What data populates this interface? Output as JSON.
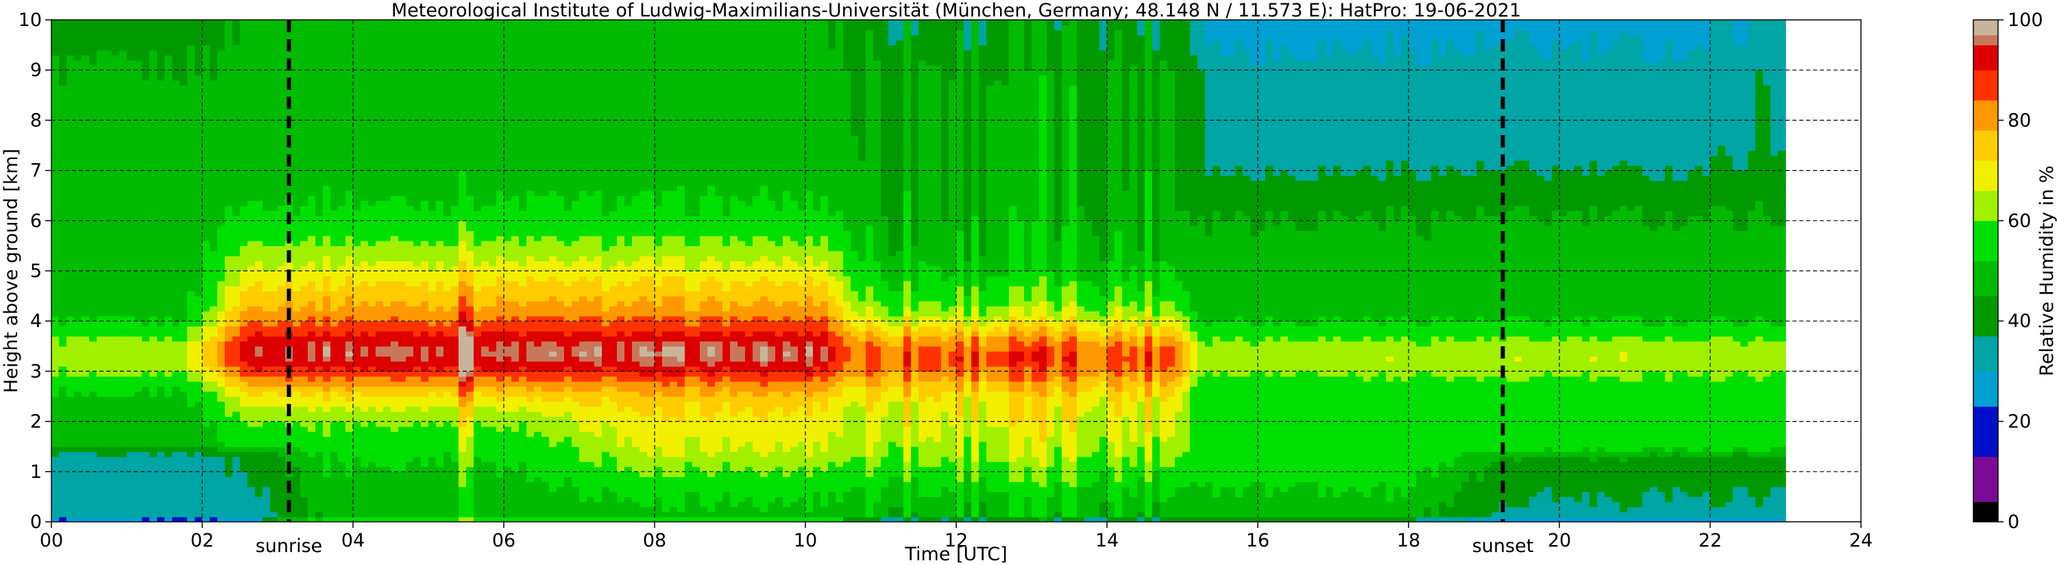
{
  "chart_data": {
    "type": "heatmap",
    "title": "Meteorological Institute of Ludwig-Maximilians-Universität (München, Germany; 48.148 N / 11.573 E):    HatPro: 19-06-2021",
    "xlabel": "Time [UTC]",
    "ylabel": "Height above ground [km]",
    "xlim": [
      0,
      24
    ],
    "ylim": [
      0,
      10
    ],
    "x_ticks": [
      "00",
      "02",
      "04",
      "06",
      "08",
      "10",
      "12",
      "14",
      "16",
      "18",
      "20",
      "22",
      "24"
    ],
    "y_ticks": [
      "0",
      "1",
      "2",
      "3",
      "4",
      "5",
      "6",
      "7",
      "8",
      "9",
      "10"
    ],
    "grid": true,
    "data_end_hour": 23,
    "annotations": [
      {
        "label": "sunrise",
        "x": 3.15
      },
      {
        "label": "sunset",
        "x": 19.25
      }
    ],
    "colorbar": {
      "label": "Relative Humidity in %",
      "range": [
        0,
        100
      ],
      "ticks": [
        "0",
        "20",
        "40",
        "60",
        "80",
        "100"
      ],
      "colors": [
        {
          "from": 0,
          "to": 4,
          "color": "#000000"
        },
        {
          "from": 4,
          "to": 13,
          "color": "#7a0a96"
        },
        {
          "from": 13,
          "to": 23,
          "color": "#0010c8"
        },
        {
          "from": 23,
          "to": 30,
          "color": "#00a0d2"
        },
        {
          "from": 30,
          "to": 37,
          "color": "#00a5a5"
        },
        {
          "from": 37,
          "to": 45,
          "color": "#009a00"
        },
        {
          "from": 45,
          "to": 52,
          "color": "#00bb00"
        },
        {
          "from": 52,
          "to": 60,
          "color": "#00e000"
        },
        {
          "from": 60,
          "to": 66,
          "color": "#a0f000"
        },
        {
          "from": 66,
          "to": 72,
          "color": "#f0f000"
        },
        {
          "from": 72,
          "to": 78,
          "color": "#ffcc00"
        },
        {
          "from": 78,
          "to": 84,
          "color": "#ff9900"
        },
        {
          "from": 84,
          "to": 90,
          "color": "#ff3300"
        },
        {
          "from": 90,
          "to": 95,
          "color": "#dd0000"
        },
        {
          "from": 95,
          "to": 97,
          "color": "#c8785a"
        },
        {
          "from": 97,
          "to": 100,
          "color": "#c8b49a"
        }
      ]
    }
  }
}
